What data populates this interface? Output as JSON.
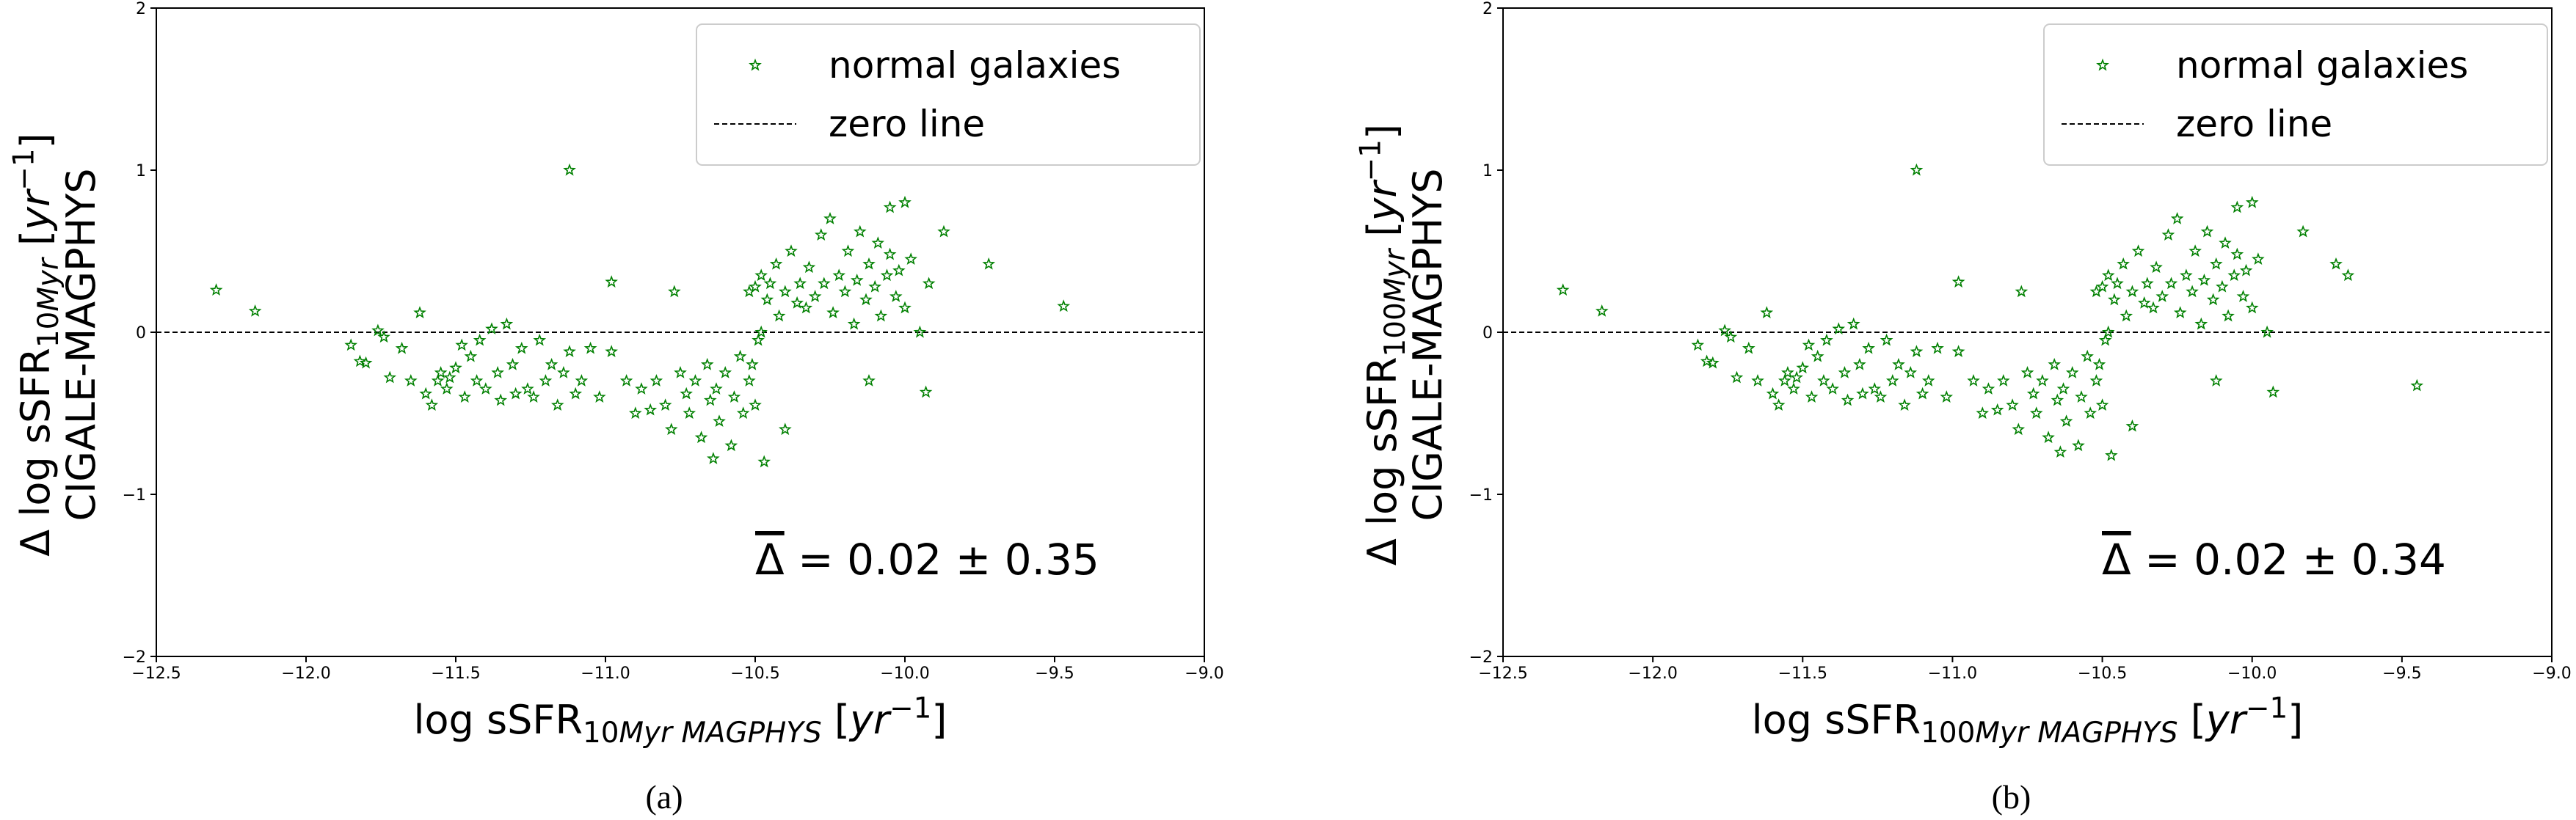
{
  "chart_data": [
    {
      "type": "scatter",
      "caption": "(a)",
      "xlabel": [
        {
          "text": "log sSFR"
        },
        {
          "text": "10",
          "shift": "sub"
        },
        {
          "text": "Myr MAGPHYS",
          "shift": "sub",
          "italic": true
        },
        {
          "text": " ["
        },
        {
          "text": "yr",
          "italic": true
        },
        {
          "text": "−1",
          "shift": "sup"
        },
        {
          "text": "]"
        }
      ],
      "ylabel": [
        [
          {
            "text": "Δ log sSFR"
          },
          {
            "text": "10",
            "shift": "sub"
          },
          {
            "text": "Myr",
            "shift": "sub",
            "italic": true
          },
          {
            "text": " ["
          },
          {
            "text": "yr",
            "italic": true
          },
          {
            "text": "−1",
            "shift": "sup"
          },
          {
            "text": "]"
          }
        ],
        [
          {
            "text": "CIGALE-MAGPHYS"
          }
        ]
      ],
      "annotation": [
        {
          "text": "Δ",
          "overline": true
        },
        {
          "text": " = 0.02 ± 0.35"
        }
      ],
      "xlim": [
        -12.5,
        -9.0
      ],
      "xticks": [
        {
          "value": -12.5,
          "label": "−12.5"
        },
        {
          "value": -12.0,
          "label": "−12.0"
        },
        {
          "value": -11.5,
          "label": "−11.5"
        },
        {
          "value": -11.0,
          "label": "−11.0"
        },
        {
          "value": -10.5,
          "label": "−10.5"
        },
        {
          "value": -10.0,
          "label": "−10.0"
        },
        {
          "value": -9.5,
          "label": "−9.5"
        },
        {
          "value": -9.0,
          "label": "−9.0"
        }
      ],
      "ylim": [
        -2,
        2
      ],
      "yticks": [
        {
          "value": -2,
          "label": "−2"
        },
        {
          "value": -1,
          "label": "−1"
        },
        0,
        1,
        2
      ],
      "legend": "upper right",
      "reference_lines": [
        {
          "name": "zero line",
          "value": 0,
          "color": "#000000",
          "style": "dashed"
        }
      ],
      "series": [
        {
          "name": "normal galaxies",
          "color": "#008000",
          "marker": "star",
          "x": [
            -12.3,
            -12.17,
            -11.12,
            -10.98,
            -9.47,
            -9.72,
            -9.87,
            -10.0,
            -10.05,
            -9.93,
            -10.12,
            -10.64,
            -10.47,
            -10.4,
            -11.85,
            -11.82,
            -11.8,
            -11.76,
            -11.74,
            -11.72,
            -11.68,
            -11.65,
            -11.62,
            -11.6,
            -11.58,
            -11.56,
            -11.55,
            -11.53,
            -11.52,
            -11.5,
            -11.48,
            -11.47,
            -11.45,
            -11.43,
            -11.42,
            -11.4,
            -11.38,
            -11.36,
            -11.35,
            -11.33,
            -11.31,
            -11.3,
            -11.28,
            -11.26,
            -11.24,
            -11.22,
            -11.2,
            -11.18,
            -11.16,
            -11.14,
            -11.12,
            -11.1,
            -11.08,
            -11.05,
            -11.02,
            -10.98,
            -10.93,
            -10.9,
            -10.88,
            -10.85,
            -10.83,
            -10.8,
            -10.78,
            -10.77,
            -10.75,
            -10.73,
            -10.72,
            -10.7,
            -10.68,
            -10.66,
            -10.65,
            -10.63,
            -10.62,
            -10.6,
            -10.58,
            -10.57,
            -10.55,
            -10.54,
            -10.52,
            -10.51,
            -10.5,
            -10.49,
            -10.48,
            -10.52,
            -10.5,
            -10.48,
            -10.46,
            -10.45,
            -10.43,
            -10.42,
            -10.4,
            -10.38,
            -10.36,
            -10.35,
            -10.33,
            -10.32,
            -10.3,
            -10.28,
            -10.27,
            -10.25,
            -10.24,
            -10.22,
            -10.2,
            -10.19,
            -10.17,
            -10.16,
            -10.15,
            -10.13,
            -10.12,
            -10.1,
            -10.09,
            -10.08,
            -10.06,
            -10.05,
            -10.03,
            -10.02,
            -10.0,
            -9.98,
            -9.95,
            -9.92
          ],
          "values": [
            0.26,
            0.13,
            1.0,
            0.31,
            0.16,
            0.42,
            0.62,
            0.8,
            0.77,
            -0.37,
            -0.3,
            -0.78,
            -0.8,
            -0.6,
            -0.08,
            -0.18,
            -0.19,
            0.01,
            -0.03,
            -0.28,
            -0.1,
            -0.3,
            0.12,
            -0.38,
            -0.45,
            -0.3,
            -0.25,
            -0.35,
            -0.28,
            -0.22,
            -0.08,
            -0.4,
            -0.15,
            -0.3,
            -0.05,
            -0.35,
            0.02,
            -0.25,
            -0.42,
            0.05,
            -0.2,
            -0.38,
            -0.1,
            -0.35,
            -0.4,
            -0.05,
            -0.3,
            -0.2,
            -0.45,
            -0.25,
            -0.12,
            -0.38,
            -0.3,
            -0.1,
            -0.4,
            -0.12,
            -0.3,
            -0.5,
            -0.35,
            -0.48,
            -0.3,
            -0.45,
            -0.6,
            0.25,
            -0.25,
            -0.38,
            -0.5,
            -0.3,
            -0.65,
            -0.2,
            -0.42,
            -0.35,
            -0.55,
            -0.25,
            -0.7,
            -0.4,
            -0.15,
            -0.5,
            -0.3,
            -0.2,
            -0.45,
            -0.05,
            0.0,
            0.25,
            0.28,
            0.35,
            0.2,
            0.3,
            0.42,
            0.1,
            0.25,
            0.5,
            0.18,
            0.3,
            0.15,
            0.4,
            0.22,
            0.6,
            0.3,
            0.7,
            0.12,
            0.35,
            0.25,
            0.5,
            0.05,
            0.32,
            0.62,
            0.2,
            0.42,
            0.28,
            0.55,
            0.1,
            0.35,
            0.48,
            0.22,
            0.38,
            0.15,
            0.45,
            0.0,
            0.3
          ]
        }
      ]
    },
    {
      "type": "scatter",
      "caption": "(b)",
      "xlabel": [
        {
          "text": "log sSFR"
        },
        {
          "text": "100",
          "shift": "sub"
        },
        {
          "text": "Myr MAGPHYS",
          "shift": "sub",
          "italic": true
        },
        {
          "text": " ["
        },
        {
          "text": "yr",
          "italic": true
        },
        {
          "text": "−1",
          "shift": "sup"
        },
        {
          "text": "]"
        }
      ],
      "ylabel": [
        [
          {
            "text": "Δ log sSFR"
          },
          {
            "text": "100",
            "shift": "sub"
          },
          {
            "text": "Myr",
            "shift": "sub",
            "italic": true
          },
          {
            "text": " ["
          },
          {
            "text": "yr",
            "italic": true
          },
          {
            "text": "−1",
            "shift": "sup"
          },
          {
            "text": "]"
          }
        ],
        [
          {
            "text": "CIGALE-MAGPHYS"
          }
        ]
      ],
      "annotation": [
        {
          "text": "Δ",
          "overline": true
        },
        {
          "text": " = 0.02 ± 0.34"
        }
      ],
      "xlim": [
        -12.5,
        -9.0
      ],
      "xticks": [
        {
          "value": -12.5,
          "label": "−12.5"
        },
        {
          "value": -12.0,
          "label": "−12.0"
        },
        {
          "value": -11.5,
          "label": "−11.5"
        },
        {
          "value": -11.0,
          "label": "−11.0"
        },
        {
          "value": -10.5,
          "label": "−10.5"
        },
        {
          "value": -10.0,
          "label": "−10.0"
        },
        {
          "value": -9.5,
          "label": "−9.5"
        },
        {
          "value": -9.0,
          "label": "−9.0"
        }
      ],
      "ylim": [
        -2,
        2
      ],
      "yticks": [
        {
          "value": -2,
          "label": "−2"
        },
        {
          "value": -1,
          "label": "−1"
        },
        0,
        1,
        2
      ],
      "legend": "upper right",
      "reference_lines": [
        {
          "name": "zero line",
          "value": 0,
          "color": "#000000",
          "style": "dashed"
        }
      ],
      "series": [
        {
          "name": "normal galaxies",
          "color": "#008000",
          "marker": "star",
          "x": [
            -12.3,
            -12.17,
            -11.12,
            -10.98,
            -9.45,
            -9.72,
            -9.83,
            -10.0,
            -10.05,
            -9.93,
            -10.12,
            -10.64,
            -10.47,
            -10.4,
            -11.85,
            -11.82,
            -11.8,
            -11.76,
            -11.74,
            -11.72,
            -11.68,
            -11.65,
            -11.62,
            -11.6,
            -11.58,
            -11.56,
            -11.55,
            -11.53,
            -11.52,
            -11.5,
            -11.48,
            -11.47,
            -11.45,
            -11.43,
            -11.42,
            -11.4,
            -11.38,
            -11.36,
            -11.35,
            -11.33,
            -11.31,
            -11.3,
            -11.28,
            -11.26,
            -11.24,
            -11.22,
            -11.2,
            -11.18,
            -11.16,
            -11.14,
            -11.12,
            -11.1,
            -11.08,
            -11.05,
            -11.02,
            -10.98,
            -10.93,
            -10.9,
            -10.88,
            -10.85,
            -10.83,
            -10.8,
            -10.78,
            -10.77,
            -10.75,
            -10.73,
            -10.72,
            -10.7,
            -10.68,
            -10.66,
            -10.65,
            -10.63,
            -10.62,
            -10.6,
            -10.58,
            -10.57,
            -10.55,
            -10.54,
            -10.52,
            -10.51,
            -10.5,
            -10.49,
            -10.48,
            -10.52,
            -10.5,
            -10.48,
            -10.46,
            -10.45,
            -10.43,
            -10.42,
            -10.4,
            -10.38,
            -10.36,
            -10.35,
            -10.33,
            -10.32,
            -10.3,
            -10.28,
            -10.27,
            -10.25,
            -10.24,
            -10.22,
            -10.2,
            -10.19,
            -10.17,
            -10.16,
            -10.15,
            -10.13,
            -10.12,
            -10.1,
            -10.09,
            -10.08,
            -10.06,
            -10.05,
            -10.03,
            -10.02,
            -10.0,
            -9.98,
            -9.95,
            -9.68
          ],
          "values": [
            0.26,
            0.13,
            1.0,
            0.31,
            -0.33,
            0.42,
            0.62,
            0.8,
            0.77,
            -0.37,
            -0.3,
            -0.74,
            -0.76,
            -0.58,
            -0.08,
            -0.18,
            -0.19,
            0.01,
            -0.03,
            -0.28,
            -0.1,
            -0.3,
            0.12,
            -0.38,
            -0.45,
            -0.3,
            -0.25,
            -0.35,
            -0.28,
            -0.22,
            -0.08,
            -0.4,
            -0.15,
            -0.3,
            -0.05,
            -0.35,
            0.02,
            -0.25,
            -0.42,
            0.05,
            -0.2,
            -0.38,
            -0.1,
            -0.35,
            -0.4,
            -0.05,
            -0.3,
            -0.2,
            -0.45,
            -0.25,
            -0.12,
            -0.38,
            -0.3,
            -0.1,
            -0.4,
            -0.12,
            -0.3,
            -0.5,
            -0.35,
            -0.48,
            -0.3,
            -0.45,
            -0.6,
            0.25,
            -0.25,
            -0.38,
            -0.5,
            -0.3,
            -0.65,
            -0.2,
            -0.42,
            -0.35,
            -0.55,
            -0.25,
            -0.7,
            -0.4,
            -0.15,
            -0.5,
            -0.3,
            -0.2,
            -0.45,
            -0.05,
            0.0,
            0.25,
            0.28,
            0.35,
            0.2,
            0.3,
            0.42,
            0.1,
            0.25,
            0.5,
            0.18,
            0.3,
            0.15,
            0.4,
            0.22,
            0.6,
            0.3,
            0.7,
            0.12,
            0.35,
            0.25,
            0.5,
            0.05,
            0.32,
            0.62,
            0.2,
            0.42,
            0.28,
            0.55,
            0.1,
            0.35,
            0.48,
            0.22,
            0.38,
            0.15,
            0.45,
            0.0,
            0.35
          ]
        }
      ]
    }
  ]
}
